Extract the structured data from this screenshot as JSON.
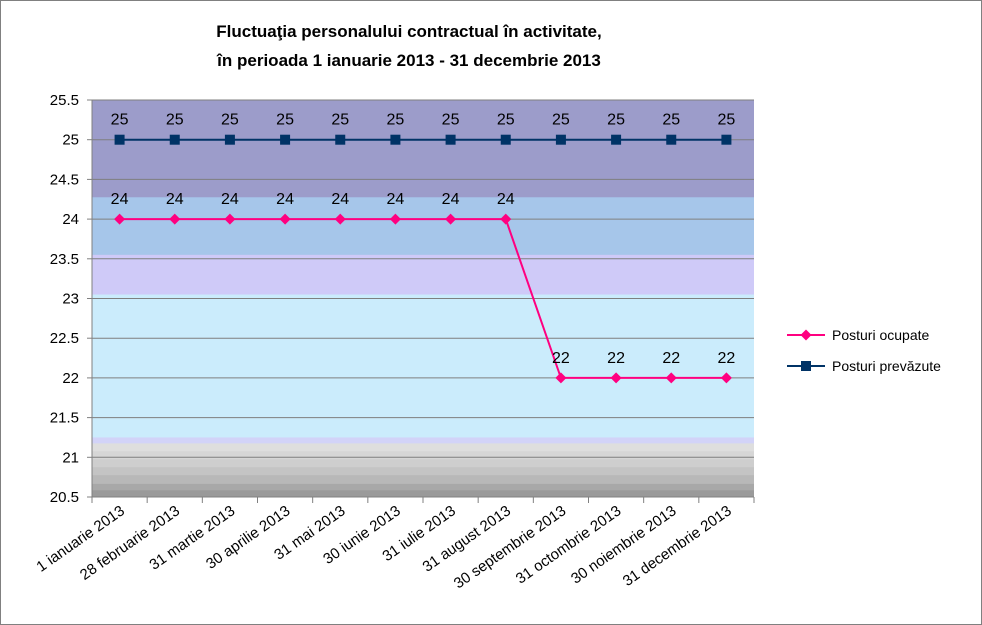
{
  "chart_data": {
    "type": "line",
    "title": [
      "Fluctuaţia personalului contractual în activitate,",
      "în perioada 1 ianuarie 2013 - 31 decembrie 2013"
    ],
    "categories": [
      "1 ianuarie 2013",
      "28 februarie 2013",
      "31 martie 2013",
      "30 aprilie 2013",
      "31 mai 2013",
      "30 iunie 2013",
      "31 iulie 2013",
      "31 august 2013",
      "30 septembrie 2013",
      "31 octombrie 2013",
      "30 noiembrie 2013",
      "31 decembrie 2013"
    ],
    "yticks": [
      "25.5",
      "25",
      "24.5",
      "24",
      "23.5",
      "23",
      "22.5",
      "22",
      "21.5",
      "21",
      "20.5"
    ],
    "ylim": [
      20.5,
      25.5
    ],
    "grid": true,
    "legend_position": "right",
    "series": [
      {
        "name": "Posturi ocupate",
        "values": [
          24,
          24,
          24,
          24,
          24,
          24,
          24,
          24,
          22,
          22,
          22,
          22
        ],
        "color": "#ff0080",
        "marker": "diamond"
      },
      {
        "name": "Posturi prevăzute",
        "values": [
          25,
          25,
          25,
          25,
          25,
          25,
          25,
          25,
          25,
          25,
          25,
          25
        ],
        "color": "#003366",
        "marker": "square"
      }
    ]
  }
}
